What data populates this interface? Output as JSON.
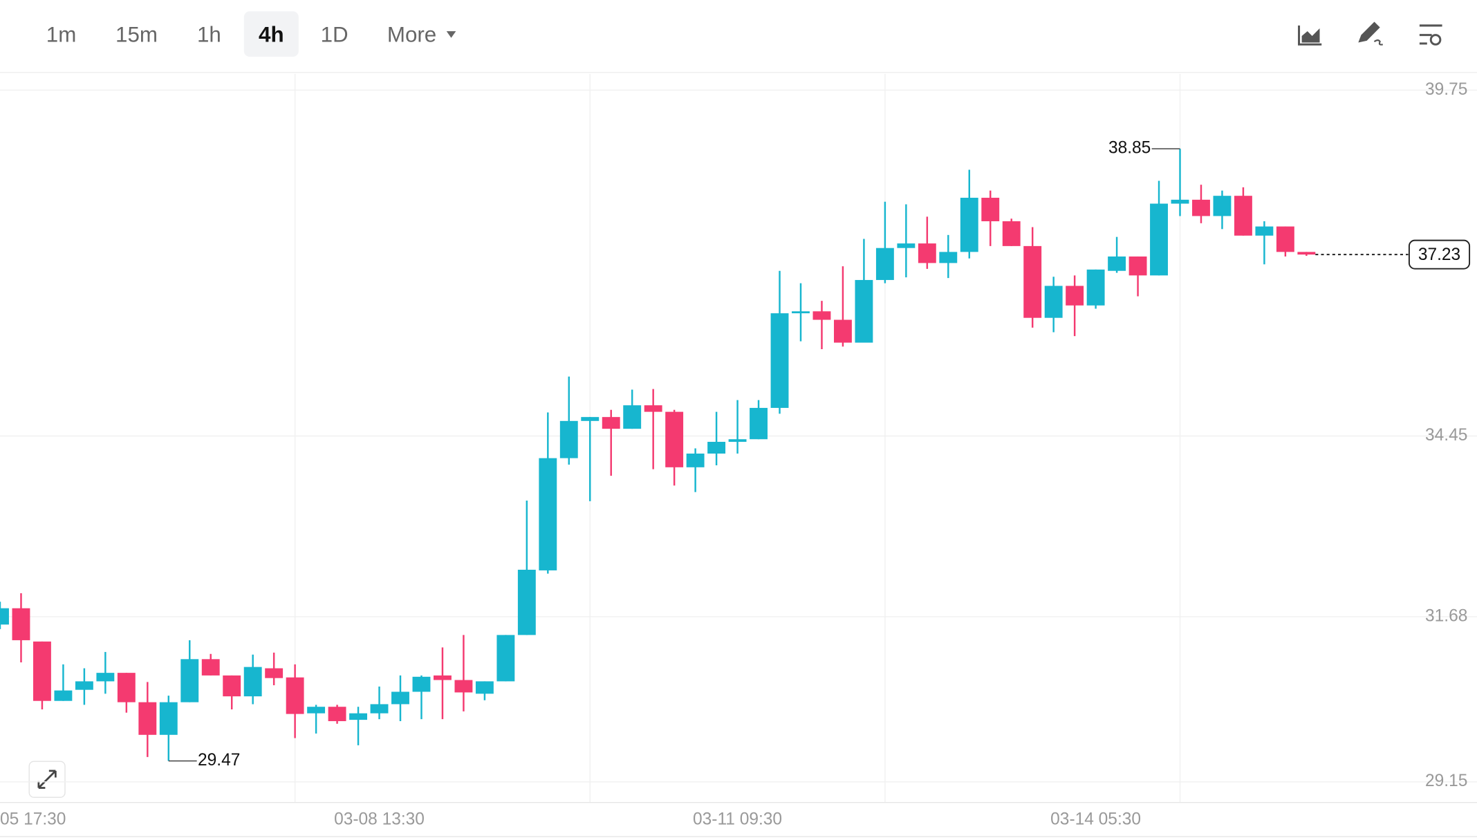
{
  "toolbar": {
    "intervals": [
      "1m",
      "15m",
      "1h",
      "4h",
      "1D"
    ],
    "active": "4h",
    "more": "More"
  },
  "chart_data": {
    "type": "candlestick",
    "categories": [
      null,
      "05 17:30",
      null,
      null,
      null,
      null,
      null,
      null,
      null,
      null,
      null,
      null,
      null,
      null,
      null,
      null,
      null,
      null,
      "03-08 13:30",
      null,
      null,
      null,
      null,
      null,
      null,
      null,
      null,
      null,
      null,
      null,
      null,
      null,
      null,
      null,
      null,
      "03-11 09:30",
      null,
      null,
      null,
      null,
      null,
      null,
      null,
      null,
      null,
      null,
      null,
      null,
      null,
      null,
      null,
      null,
      "03-14 05:30",
      null,
      null,
      null,
      null,
      null,
      null,
      null,
      null,
      null,
      null
    ],
    "open": [
      31.56,
      31.81,
      31.3,
      30.39,
      30.56,
      30.69,
      30.82,
      30.37,
      29.87,
      30.37,
      31.03,
      30.78,
      30.46,
      30.89,
      30.75,
      30.2,
      30.3,
      30.1,
      30.2,
      30.34,
      30.53,
      30.78,
      30.71,
      30.5,
      30.69,
      31.4,
      32.39,
      34.11,
      34.68,
      34.74,
      34.56,
      34.92,
      34.82,
      33.97,
      34.18,
      34.36,
      34.4,
      34.88,
      36.33,
      36.36,
      36.23,
      35.88,
      36.84,
      37.33,
      37.4,
      37.1,
      37.27,
      38.1,
      37.74,
      37.36,
      36.26,
      36.75,
      36.45,
      36.98,
      37.2,
      36.91,
      38.01,
      38.07,
      37.82,
      38.13,
      37.52,
      37.66,
      37.27
    ],
    "high": [
      31.91,
      32.04,
      31.3,
      30.95,
      30.89,
      31.14,
      30.82,
      30.68,
      30.47,
      31.32,
      31.11,
      30.78,
      31.1,
      31.13,
      30.95,
      30.33,
      30.33,
      30.3,
      30.61,
      30.78,
      30.78,
      31.21,
      31.4,
      30.69,
      31.4,
      33.46,
      34.81,
      35.36,
      34.74,
      34.85,
      35.16,
      35.17,
      34.85,
      34.26,
      34.82,
      35.0,
      35.0,
      36.98,
      36.79,
      36.52,
      37.05,
      37.47,
      38.04,
      38.0,
      37.81,
      37.53,
      38.53,
      38.21,
      37.78,
      37.65,
      36.89,
      36.91,
      37.0,
      37.5,
      37.2,
      38.36,
      38.85,
      38.3,
      38.21,
      38.26,
      37.74,
      37.66,
      37.27
    ],
    "low": [
      31.49,
      30.98,
      30.26,
      30.39,
      30.33,
      30.5,
      30.21,
      29.53,
      29.47,
      30.37,
      30.78,
      30.26,
      30.34,
      30.63,
      29.82,
      29.89,
      30.04,
      29.71,
      30.11,
      30.08,
      30.11,
      30.11,
      30.23,
      30.4,
      30.69,
      31.4,
      32.34,
      34.01,
      33.45,
      33.84,
      34.56,
      33.94,
      33.69,
      33.59,
      34.0,
      34.18,
      34.4,
      34.79,
      35.9,
      35.78,
      35.82,
      35.88,
      36.79,
      36.88,
      37.01,
      36.87,
      37.17,
      37.36,
      37.36,
      36.11,
      36.04,
      35.98,
      36.4,
      36.95,
      36.59,
      36.91,
      37.82,
      37.71,
      37.62,
      37.52,
      37.08,
      37.2,
      37.21
    ],
    "close": [
      31.81,
      31.32,
      30.39,
      30.55,
      30.69,
      30.82,
      30.37,
      29.87,
      30.37,
      31.03,
      30.78,
      30.46,
      30.91,
      30.74,
      30.19,
      30.3,
      30.08,
      30.2,
      30.34,
      30.53,
      30.76,
      30.71,
      30.52,
      30.69,
      31.4,
      32.4,
      34.11,
      34.68,
      34.74,
      34.56,
      34.92,
      34.82,
      33.97,
      34.18,
      34.36,
      34.4,
      34.88,
      36.33,
      36.36,
      36.23,
      35.88,
      36.84,
      37.33,
      37.4,
      37.1,
      37.27,
      38.1,
      37.74,
      37.36,
      36.26,
      36.75,
      36.45,
      37.0,
      37.2,
      36.91,
      38.01,
      38.07,
      37.82,
      38.13,
      37.52,
      37.66,
      37.27,
      37.23
    ],
    "up_color": "#17b6cf",
    "down_color": "#f43a70",
    "ylim": [
      28.84,
      40.0
    ],
    "yticks": [
      39.75,
      34.45,
      31.68,
      29.15
    ],
    "grid": true,
    "high_label": 38.85,
    "low_label": 29.47,
    "last_price": 37.23
  }
}
